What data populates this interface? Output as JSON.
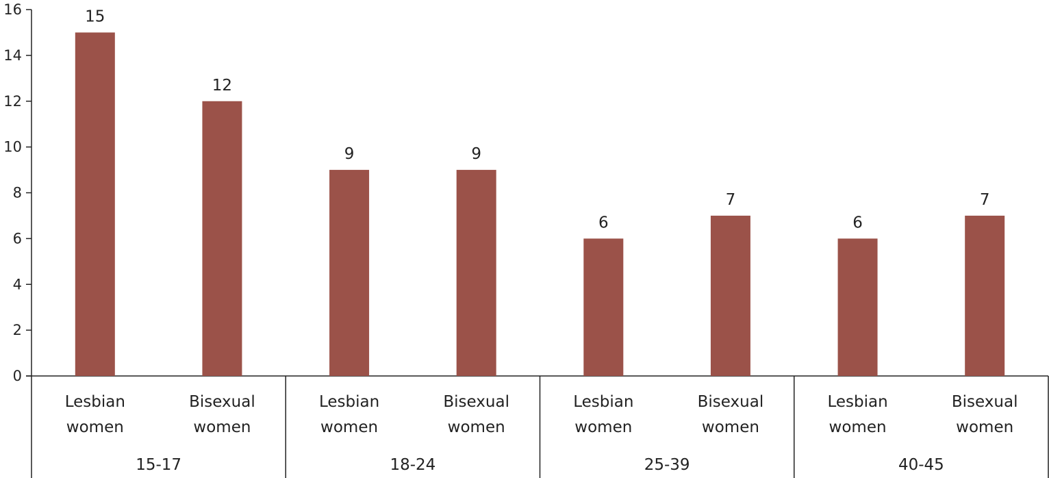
{
  "chart_data": {
    "type": "bar",
    "groups": [
      "15-17",
      "18-24",
      "25-39",
      "40-45"
    ],
    "subcategories": [
      [
        "Lesbian",
        "women"
      ],
      [
        "Bisexual",
        "women"
      ]
    ],
    "categories": [
      {
        "group": "15-17",
        "label": [
          "Lesbian",
          "women"
        ],
        "value": 15
      },
      {
        "group": "15-17",
        "label": [
          "Bisexual",
          "women"
        ],
        "value": 12
      },
      {
        "group": "18-24",
        "label": [
          "Lesbian",
          "women"
        ],
        "value": 9
      },
      {
        "group": "18-24",
        "label": [
          "Bisexual",
          "women"
        ],
        "value": 9
      },
      {
        "group": "25-39",
        "label": [
          "Lesbian",
          "women"
        ],
        "value": 6
      },
      {
        "group": "25-39",
        "label": [
          "Bisexual",
          "women"
        ],
        "value": 7
      },
      {
        "group": "40-45",
        "label": [
          "Lesbian",
          "women"
        ],
        "value": 6
      },
      {
        "group": "40-45",
        "label": [
          "Bisexual",
          "women"
        ],
        "value": 7
      }
    ],
    "values": [
      15,
      12,
      9,
      9,
      6,
      7,
      6,
      7
    ],
    "data_labels": [
      "15",
      "12",
      "9",
      "9",
      "6",
      "7",
      "6",
      "7"
    ],
    "ylim": [
      0,
      16
    ],
    "yticks": [
      0,
      2,
      4,
      6,
      8,
      10,
      12,
      14,
      16
    ],
    "title": "",
    "xlabel": "",
    "ylabel": "",
    "grid": false,
    "legend": "none",
    "bar_color": "#9b5249",
    "axis_color": "#222222"
  }
}
